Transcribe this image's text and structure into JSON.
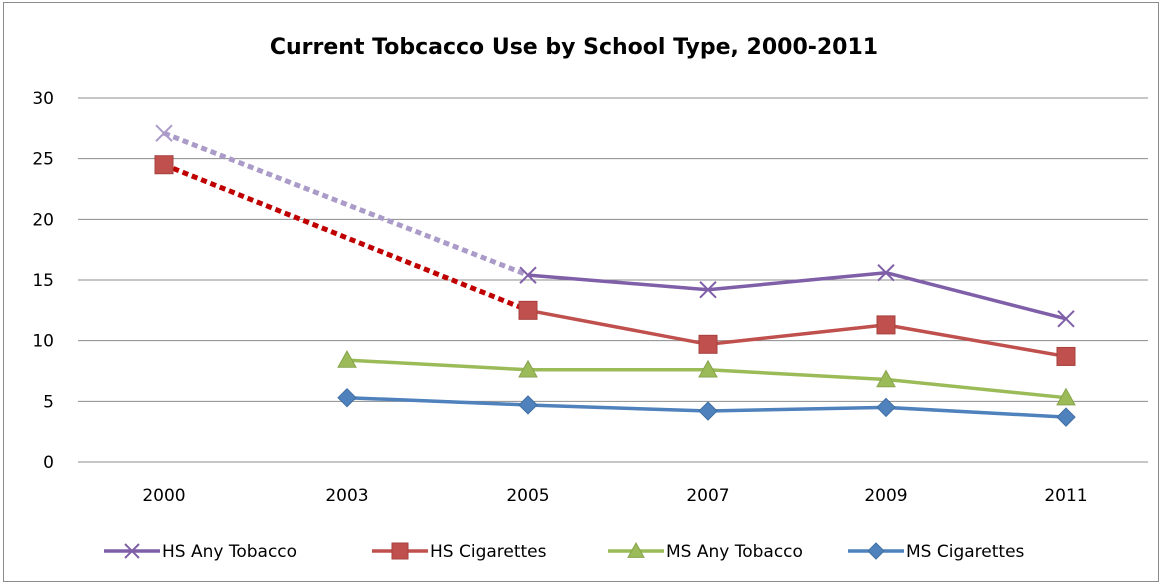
{
  "chart_data": {
    "type": "line",
    "title": "Current Tobcacco Use by School Type, 2000-2011",
    "xlabel": "",
    "ylabel": "",
    "categories": [
      "2000",
      "2003",
      "2005",
      "2007",
      "2009",
      "2011"
    ],
    "ylim": [
      0,
      30
    ],
    "yticks": [
      "0",
      "5",
      "10",
      "15",
      "20",
      "25",
      "30"
    ],
    "grid": "horizontal",
    "legend": "bottom",
    "series": [
      {
        "name": "HS Any Tobacco",
        "color": "#7f5fa8",
        "dotted_color": "#ab9bc8",
        "marker": "x",
        "values": [
          27.1,
          null,
          15.4,
          14.2,
          15.6,
          11.8
        ],
        "dotted_segment": [
          0,
          2
        ]
      },
      {
        "name": "HS Cigarettes",
        "color": "#c0504d",
        "dotted_color": "#c00000",
        "marker": "square",
        "values": [
          24.5,
          null,
          12.5,
          9.7,
          11.3,
          8.7
        ],
        "dotted_segment": [
          0,
          2
        ]
      },
      {
        "name": "MS Any Tobacco",
        "color": "#9bbb59",
        "marker": "triangle",
        "values": [
          null,
          8.4,
          7.6,
          7.6,
          6.8,
          5.3
        ]
      },
      {
        "name": "MS Cigarettes",
        "color": "#4f81bd",
        "marker": "diamond",
        "values": [
          null,
          5.3,
          4.7,
          4.2,
          4.5,
          3.7
        ]
      }
    ]
  }
}
